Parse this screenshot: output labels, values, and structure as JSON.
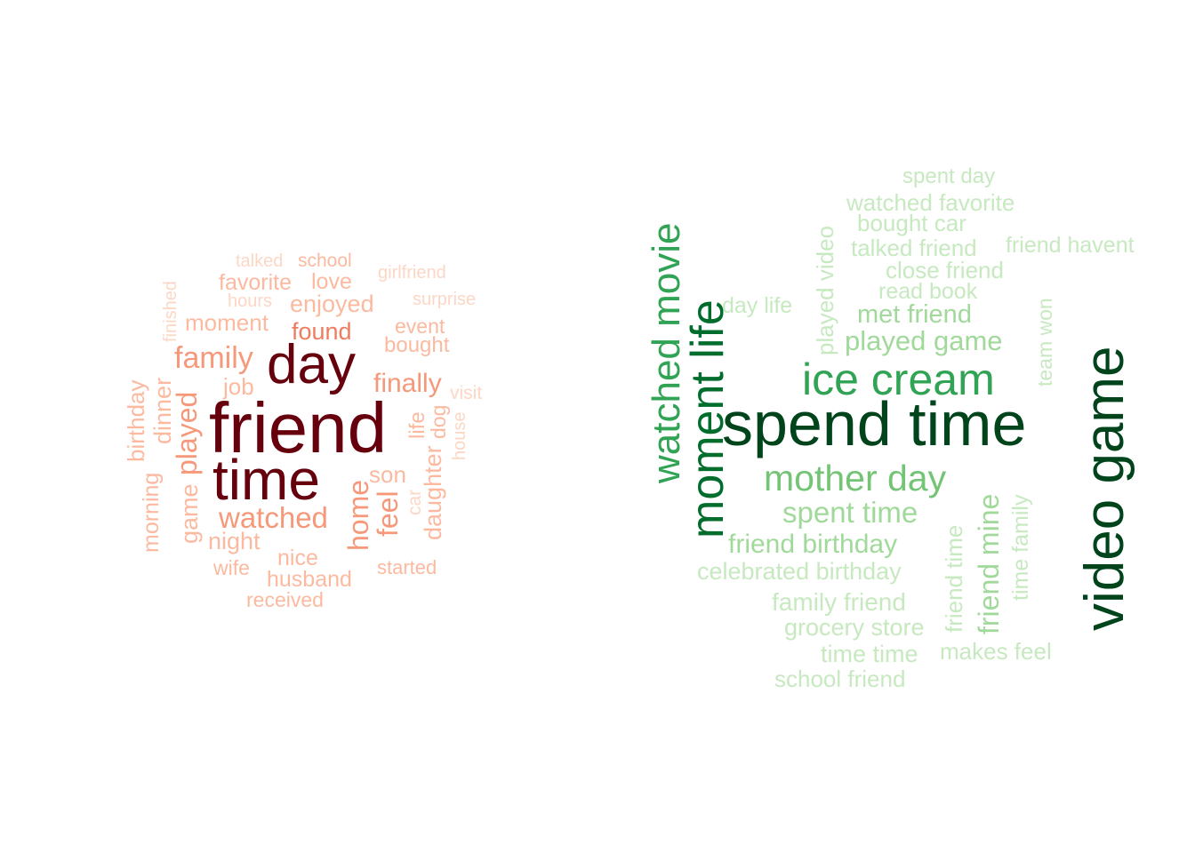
{
  "palettes": {
    "reds": [
      "#fcd7c6",
      "#fbbaa0",
      "#f6987a",
      "#ef7c5f",
      "#67000d"
    ],
    "greens": [
      "#c7e9c0",
      "#a1d99b",
      "#74c476",
      "#31a354",
      "#006d2c",
      "#00441b"
    ]
  },
  "unigram_cloud": {
    "words": [
      {
        "text": "talked"
      },
      {
        "text": "school"
      },
      {
        "text": "girlfriend"
      },
      {
        "text": "favorite"
      },
      {
        "text": "love"
      },
      {
        "text": "finished"
      },
      {
        "text": "hours"
      },
      {
        "text": "surprise"
      },
      {
        "text": "enjoyed"
      },
      {
        "text": "moment"
      },
      {
        "text": "event"
      },
      {
        "text": "found"
      },
      {
        "text": "bought"
      },
      {
        "text": "family"
      },
      {
        "text": "day"
      },
      {
        "text": "job"
      },
      {
        "text": "finally"
      },
      {
        "text": "birthday"
      },
      {
        "text": "dinner"
      },
      {
        "text": "visit"
      },
      {
        "text": "played"
      },
      {
        "text": "friend"
      },
      {
        "text": "life"
      },
      {
        "text": "dog"
      },
      {
        "text": "house"
      },
      {
        "text": "time"
      },
      {
        "text": "son"
      },
      {
        "text": "home"
      },
      {
        "text": "morning"
      },
      {
        "text": "game"
      },
      {
        "text": "car"
      },
      {
        "text": "feel"
      },
      {
        "text": "daughter"
      },
      {
        "text": "watched"
      },
      {
        "text": "night"
      },
      {
        "text": "nice"
      },
      {
        "text": "wife"
      },
      {
        "text": "started"
      },
      {
        "text": "husband"
      },
      {
        "text": "received"
      }
    ]
  },
  "bigram_cloud": {
    "words": [
      {
        "text": "spent day"
      },
      {
        "text": "watched favorite"
      },
      {
        "text": "bought car"
      },
      {
        "text": "talked friend"
      },
      {
        "text": "friend havent"
      },
      {
        "text": "close friend"
      },
      {
        "text": "read book"
      },
      {
        "text": "day life"
      },
      {
        "text": "met friend"
      },
      {
        "text": "played game"
      },
      {
        "text": "played video"
      },
      {
        "text": "team won"
      },
      {
        "text": "watched movie"
      },
      {
        "text": "moment life"
      },
      {
        "text": "ice cream"
      },
      {
        "text": "spend time"
      },
      {
        "text": "video game"
      },
      {
        "text": "mother day"
      },
      {
        "text": "spent time"
      },
      {
        "text": "friend birthday"
      },
      {
        "text": "celebrated birthday"
      },
      {
        "text": "family friend"
      },
      {
        "text": "grocery store"
      },
      {
        "text": "time time"
      },
      {
        "text": "makes feel"
      },
      {
        "text": "school friend"
      },
      {
        "text": "friend time"
      },
      {
        "text": "friend mine"
      },
      {
        "text": "time family"
      }
    ]
  }
}
